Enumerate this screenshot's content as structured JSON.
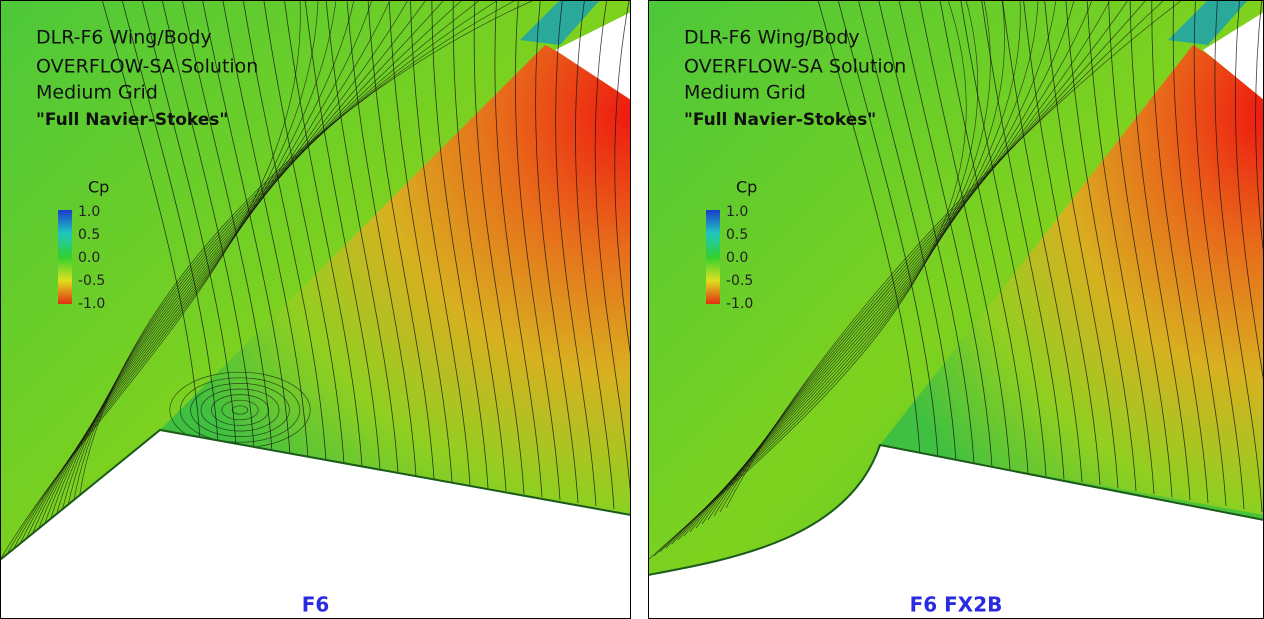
{
  "panels": [
    {
      "title_lines": [
        "DLR-F6 Wing/Body",
        "OVERFLOW-SA Solution",
        "Medium Grid",
        "\"Full Navier-Stokes\""
      ],
      "legend": {
        "label": "Cp",
        "ticks": [
          "1.0",
          "0.5",
          "0.0",
          "-0.5",
          "-1.0"
        ]
      },
      "caption": "F6"
    },
    {
      "title_lines": [
        "DLR-F6 Wing/Body",
        "OVERFLOW-SA Solution",
        "Medium Grid",
        "\"Full Navier-Stokes\""
      ],
      "legend": {
        "label": "Cp",
        "ticks": [
          "1.0",
          "0.5",
          "0.0",
          "-0.5",
          "-1.0"
        ]
      },
      "caption": "F6 FX2B"
    }
  ]
}
